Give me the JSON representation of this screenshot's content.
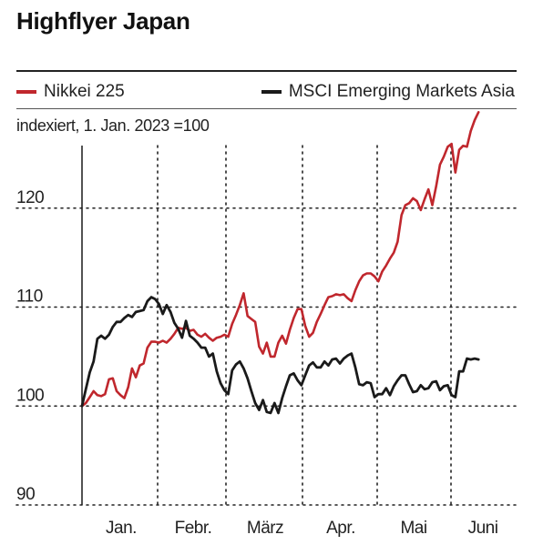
{
  "page": {
    "title": "Highflyer Japan"
  },
  "chart_data": {
    "type": "line",
    "title": "Highflyer Japan",
    "subtitle": "indexiert, 1. Jan. 2023 =100",
    "xlabel": "",
    "ylabel": "",
    "x_tick_labels": [
      "Jan.",
      "Febr.",
      "März",
      "Apr.",
      "Mai",
      "Juni"
    ],
    "y_ticks": [
      90,
      100,
      110,
      120
    ],
    "ylim": [
      90,
      130
    ],
    "grid": true,
    "legend_position": "top",
    "x_unit": "trading-day index (0 = 2 Jan 2023, 103 = 6 Jun 2023)",
    "series": [
      {
        "name": "Nikkei 225",
        "color": "#c0272d",
        "points": [
          [
            0,
            100
          ],
          [
            1,
            100.3
          ],
          [
            2,
            100.9
          ],
          [
            3,
            101.5
          ],
          [
            4,
            101.1
          ],
          [
            5,
            101.0
          ],
          [
            6,
            101.2
          ],
          [
            7,
            102.7
          ],
          [
            8,
            102.8
          ],
          [
            9,
            101.5
          ],
          [
            10,
            101.1
          ],
          [
            11,
            100.8
          ],
          [
            12,
            101.9
          ],
          [
            13,
            103.8
          ],
          [
            14,
            102.9
          ],
          [
            15,
            104.1
          ],
          [
            16,
            104.3
          ],
          [
            17,
            105.9
          ],
          [
            18,
            106.5
          ],
          [
            19,
            106.5
          ],
          [
            20,
            106.4
          ],
          [
            21,
            106.6
          ],
          [
            22,
            106.4
          ],
          [
            23,
            106.8
          ],
          [
            24,
            107.3
          ],
          [
            25,
            107.9
          ],
          [
            26,
            107.8
          ],
          [
            27,
            107.9
          ],
          [
            28,
            107.6
          ],
          [
            29,
            107.7
          ],
          [
            30,
            107.2
          ],
          [
            31,
            107.0
          ],
          [
            32,
            107.3
          ],
          [
            33,
            106.9
          ],
          [
            34,
            106.6
          ],
          [
            35,
            106.9
          ],
          [
            36,
            107.0
          ],
          [
            37,
            107.2
          ],
          [
            38,
            107.0
          ],
          [
            39,
            108.3
          ],
          [
            40,
            109.2
          ],
          [
            41,
            110.2
          ],
          [
            42,
            111.4
          ],
          [
            43,
            109.1
          ],
          [
            44,
            108.8
          ],
          [
            45,
            108.5
          ],
          [
            46,
            106.0
          ],
          [
            47,
            105.3
          ],
          [
            48,
            106.4
          ],
          [
            49,
            105.0
          ],
          [
            50,
            105.0
          ],
          [
            51,
            106.4
          ],
          [
            52,
            107.1
          ],
          [
            53,
            106.3
          ],
          [
            54,
            107.7
          ],
          [
            55,
            108.9
          ],
          [
            56,
            109.8
          ],
          [
            57,
            109.8
          ],
          [
            58,
            108.1
          ],
          [
            59,
            107.0
          ],
          [
            60,
            107.4
          ],
          [
            61,
            108.5
          ],
          [
            62,
            109.3
          ],
          [
            63,
            110.2
          ],
          [
            64,
            111.0
          ],
          [
            65,
            111.1
          ],
          [
            66,
            111.3
          ],
          [
            67,
            111.2
          ],
          [
            68,
            111.3
          ],
          [
            69,
            110.9
          ],
          [
            70,
            110.6
          ],
          [
            71,
            111.7
          ],
          [
            72,
            112.6
          ],
          [
            73,
            113.2
          ],
          [
            74,
            113.4
          ],
          [
            75,
            113.4
          ],
          [
            76,
            113.1
          ],
          [
            77,
            112.6
          ],
          [
            78,
            113.6
          ],
          [
            79,
            114.2
          ],
          [
            80,
            114.9
          ],
          [
            81,
            115.5
          ],
          [
            82,
            116.6
          ],
          [
            83,
            119.3
          ],
          [
            84,
            120.3
          ],
          [
            85,
            120.5
          ],
          [
            86,
            121.0
          ],
          [
            87,
            120.7
          ],
          [
            88,
            119.8
          ],
          [
            89,
            120.9
          ],
          [
            90,
            121.9
          ],
          [
            91,
            120.3
          ],
          [
            92,
            122.2
          ],
          [
            93,
            124.4
          ],
          [
            94,
            125.2
          ],
          [
            95,
            126.2
          ],
          [
            96,
            126.5
          ],
          [
            97,
            123.6
          ],
          [
            98,
            125.9
          ],
          [
            99,
            126.3
          ],
          [
            100,
            126.2
          ],
          [
            101,
            127.8
          ],
          [
            102,
            128.9
          ],
          [
            103,
            129.7
          ]
        ]
      },
      {
        "name": "MSCI Emerging Markets Asia",
        "color": "#1a1a1a",
        "points": [
          [
            0,
            100
          ],
          [
            1,
            101.7
          ],
          [
            2,
            103.4
          ],
          [
            3,
            104.5
          ],
          [
            4,
            106.8
          ],
          [
            5,
            107.1
          ],
          [
            6,
            106.8
          ],
          [
            7,
            107.2
          ],
          [
            8,
            108.0
          ],
          [
            9,
            108.5
          ],
          [
            10,
            108.5
          ],
          [
            11,
            108.9
          ],
          [
            12,
            109.2
          ],
          [
            13,
            109.0
          ],
          [
            14,
            109.5
          ],
          [
            15,
            109.6
          ],
          [
            16,
            109.7
          ],
          [
            17,
            110.6
          ],
          [
            18,
            111.0
          ],
          [
            19,
            110.8
          ],
          [
            20,
            110.3
          ],
          [
            21,
            109.3
          ],
          [
            22,
            110.2
          ],
          [
            23,
            109.5
          ],
          [
            24,
            108.4
          ],
          [
            25,
            107.8
          ],
          [
            26,
            106.9
          ],
          [
            27,
            108.6
          ],
          [
            28,
            107.1
          ],
          [
            29,
            106.8
          ],
          [
            30,
            106.4
          ],
          [
            31,
            105.9
          ],
          [
            32,
            105.9
          ],
          [
            33,
            105.0
          ],
          [
            34,
            105.3
          ],
          [
            35,
            103.5
          ],
          [
            36,
            102.3
          ],
          [
            37,
            101.6
          ],
          [
            38,
            101.2
          ],
          [
            39,
            103.6
          ],
          [
            40,
            104.2
          ],
          [
            41,
            104.5
          ],
          [
            42,
            103.8
          ],
          [
            43,
            102.8
          ],
          [
            44,
            101.5
          ],
          [
            45,
            100.3
          ],
          [
            46,
            99.6
          ],
          [
            47,
            100.6
          ],
          [
            48,
            99.4
          ],
          [
            49,
            99.3
          ],
          [
            50,
            100.3
          ],
          [
            51,
            99.3
          ],
          [
            52,
            100.8
          ],
          [
            53,
            102.0
          ],
          [
            54,
            103.1
          ],
          [
            55,
            103.3
          ],
          [
            56,
            102.6
          ],
          [
            57,
            102.1
          ],
          [
            58,
            103.1
          ],
          [
            59,
            104.1
          ],
          [
            60,
            104.4
          ],
          [
            61,
            103.9
          ],
          [
            62,
            103.9
          ],
          [
            63,
            104.5
          ],
          [
            64,
            104.1
          ],
          [
            65,
            104.7
          ],
          [
            66,
            104.8
          ],
          [
            67,
            104.3
          ],
          [
            68,
            104.8
          ],
          [
            69,
            105.1
          ],
          [
            70,
            105.3
          ],
          [
            71,
            103.9
          ],
          [
            72,
            102.2
          ],
          [
            73,
            102.1
          ],
          [
            74,
            102.4
          ],
          [
            75,
            102.3
          ],
          [
            76,
            100.9
          ],
          [
            77,
            101.2
          ],
          [
            78,
            101.2
          ],
          [
            79,
            101.8
          ],
          [
            80,
            101.1
          ],
          [
            81,
            102.0
          ],
          [
            82,
            102.6
          ],
          [
            83,
            103.1
          ],
          [
            84,
            103.1
          ],
          [
            85,
            102.2
          ],
          [
            86,
            101.4
          ],
          [
            87,
            101.5
          ],
          [
            88,
            102.1
          ],
          [
            89,
            101.7
          ],
          [
            90,
            101.8
          ],
          [
            91,
            102.4
          ],
          [
            92,
            102.5
          ],
          [
            93,
            101.6
          ],
          [
            94,
            102.0
          ],
          [
            95,
            102.1
          ],
          [
            96,
            101.1
          ],
          [
            97,
            100.9
          ],
          [
            98,
            103.5
          ],
          [
            99,
            103.5
          ],
          [
            100,
            104.8
          ],
          [
            101,
            104.7
          ],
          [
            102,
            104.8
          ],
          [
            103,
            104.7
          ]
        ]
      }
    ]
  }
}
